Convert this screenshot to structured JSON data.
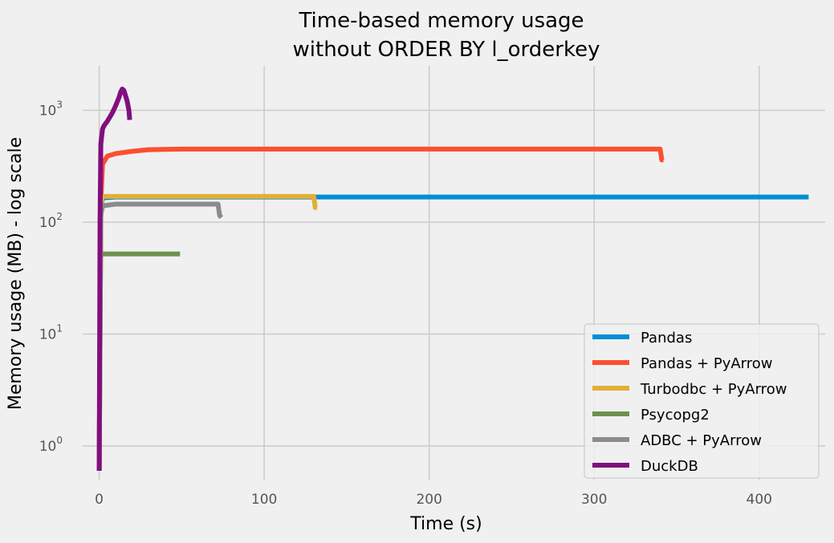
{
  "chart_data": {
    "type": "line",
    "title": "Time-based memory usage",
    "subtitle": "without ORDER BY l_orderkey",
    "xlabel": "Time (s)",
    "ylabel": "Memory usage (MB) - log scale",
    "xscale": "linear",
    "yscale": "log",
    "xlim": [
      -10,
      440
    ],
    "ylim": [
      0.5,
      2500
    ],
    "xticks": [
      0,
      100,
      200,
      300,
      400
    ],
    "xtick_labels": [
      "0",
      "100",
      "200",
      "300",
      "400"
    ],
    "yticks": [
      1,
      10,
      100,
      1000
    ],
    "ytick_labels": [
      {
        "base": "10",
        "exp": "0"
      },
      {
        "base": "10",
        "exp": "1"
      },
      {
        "base": "10",
        "exp": "2"
      },
      {
        "base": "10",
        "exp": "3"
      }
    ],
    "grid": true,
    "legend_position": "lower-right",
    "series": [
      {
        "name": "Pandas",
        "color": "#008fd5",
        "x": [
          0,
          1,
          2,
          10,
          50,
          100,
          200,
          300,
          400,
          430
        ],
        "y": [
          0.6,
          130,
          165,
          168,
          168,
          168,
          168,
          168,
          168,
          168
        ]
      },
      {
        "name": "Pandas + PyArrow",
        "color": "#fc4f30",
        "x": [
          0,
          1,
          2,
          5,
          10,
          20,
          30,
          50,
          100,
          200,
          300,
          340,
          341,
          342
        ],
        "y": [
          0.6,
          150,
          330,
          390,
          410,
          430,
          445,
          450,
          450,
          450,
          450,
          450,
          360,
          360
        ]
      },
      {
        "name": "Turbodbc + PyArrow",
        "color": "#e5ae38",
        "x": [
          0,
          1,
          2,
          10,
          50,
          100,
          130,
          131,
          132
        ],
        "y": [
          0.6,
          140,
          170,
          170,
          170,
          170,
          170,
          135,
          135
        ]
      },
      {
        "name": "Psycopg2",
        "color": "#6d904f",
        "x": [
          1,
          10,
          20,
          30,
          40,
          49
        ],
        "y": [
          52,
          52,
          52,
          52,
          52,
          52
        ]
      },
      {
        "name": "ADBC + PyArrow",
        "color": "#8b8b8b",
        "x": [
          0,
          1,
          2,
          10,
          30,
          50,
          70,
          72,
          73,
          74
        ],
        "y": [
          0.6,
          115,
          140,
          145,
          145,
          145,
          145,
          145,
          115,
          110
        ]
      },
      {
        "name": "DuckDB",
        "color": "#810f7c",
        "x": [
          0,
          0.5,
          1,
          2,
          3,
          5,
          8,
          10,
          12,
          13,
          14,
          15,
          16,
          17,
          18,
          18.5
        ],
        "y": [
          0.6,
          100,
          500,
          680,
          730,
          800,
          950,
          1100,
          1300,
          1450,
          1550,
          1500,
          1350,
          1200,
          1000,
          820
        ]
      }
    ]
  }
}
